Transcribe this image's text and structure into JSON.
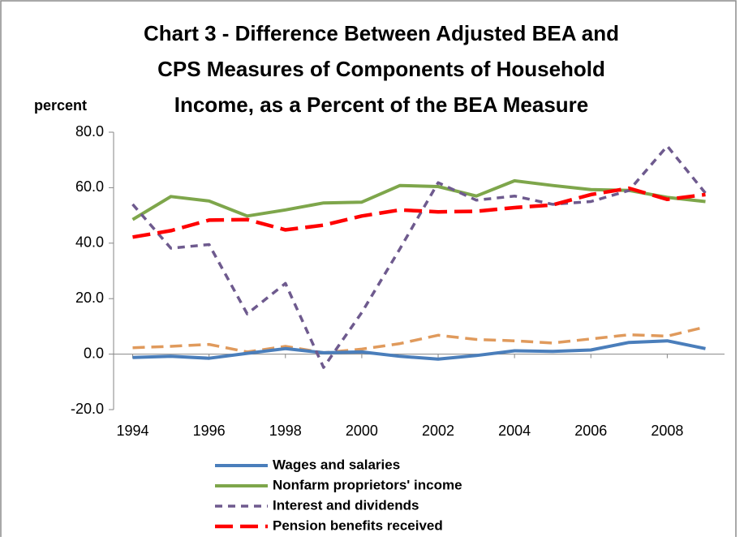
{
  "chart_data": {
    "type": "line",
    "title": [
      "Chart 3 - Difference Between Adjusted BEA and",
      "CPS Measures of Components of Household",
      "Income, as a Percent of the BEA Measure"
    ],
    "y_label": "percent",
    "x": [
      1994,
      1995,
      1996,
      1997,
      1998,
      1999,
      2000,
      2001,
      2002,
      2003,
      2004,
      2005,
      2006,
      2007,
      2008,
      2009
    ],
    "xlim": [
      1993.5,
      2009.5
    ],
    "xticks": [
      1994,
      1996,
      1998,
      2000,
      2002,
      2004,
      2006,
      2008
    ],
    "ylim": [
      -20,
      80
    ],
    "yticks": [
      {
        "value": -20,
        "label": "-20.0"
      },
      {
        "value": 0,
        "label": "0.0"
      },
      {
        "value": 20,
        "label": "20.0"
      },
      {
        "value": 40,
        "label": "40.0"
      },
      {
        "value": 60,
        "label": "60.0"
      },
      {
        "value": 80,
        "label": "80.0"
      }
    ],
    "series": [
      {
        "name": "Wages and salaries",
        "color": "#4a7ebb",
        "dash": "solid",
        "values": [
          -1.2,
          -0.8,
          -1.5,
          0.3,
          2.0,
          0.5,
          0.8,
          -0.8,
          -1.8,
          -0.5,
          1.2,
          1.0,
          1.5,
          4.2,
          4.8,
          2.0
        ]
      },
      {
        "name": "Nonfarm proprietors' income",
        "color": "#7ea64b",
        "dash": "solid",
        "values": [
          48.5,
          56.8,
          55.2,
          49.8,
          52.0,
          54.5,
          54.8,
          60.8,
          60.4,
          57.0,
          62.5,
          60.8,
          59.3,
          59.0,
          56.5,
          55.0
        ]
      },
      {
        "name": "Interest and dividends",
        "color": "#6e5a8e",
        "dash": "short",
        "values": [
          54.0,
          38.2,
          39.5,
          14.5,
          25.5,
          -4.8,
          15.0,
          38.0,
          61.8,
          55.5,
          57.0,
          54.0,
          55.0,
          59.0,
          75.0,
          58.0
        ]
      },
      {
        "name": "Pension benefits received",
        "color": "#ff0000",
        "dash": "long",
        "values": [
          42.2,
          44.5,
          48.3,
          48.5,
          44.8,
          46.5,
          49.8,
          52.0,
          51.3,
          51.5,
          52.8,
          53.8,
          57.5,
          59.8,
          55.8,
          57.5
        ]
      },
      {
        "color": "#e09a5c",
        "dash": "medium",
        "values": [
          2.3,
          2.8,
          3.5,
          0.8,
          2.8,
          0.5,
          1.8,
          3.8,
          6.8,
          5.3,
          4.8,
          4.0,
          5.5,
          7.0,
          6.5,
          9.8
        ]
      }
    ]
  }
}
